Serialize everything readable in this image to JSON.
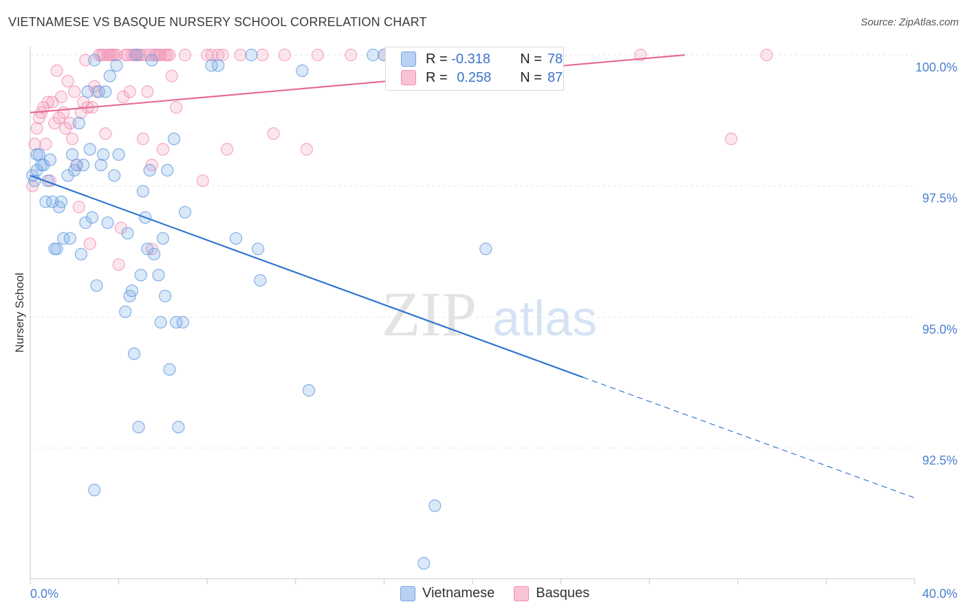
{
  "header": {
    "title": "VIETNAMESE VS BASQUE NURSERY SCHOOL CORRELATION CHART",
    "source": "Source: ZipAtlas.com"
  },
  "watermark": {
    "zip": "ZIP",
    "atlas": "atlas"
  },
  "legend": {
    "rows": [
      {
        "r_label": "R =",
        "r_value": "-0.318",
        "n_label": "N =",
        "n_value": "78"
      },
      {
        "r_label": "R =",
        "r_value": "0.258",
        "n_label": "N =",
        "n_value": "87"
      }
    ]
  },
  "bottom_legend": {
    "series_a": "Vietnamese",
    "series_b": "Basques"
  },
  "chart_data": {
    "type": "scatter",
    "title": "VIETNAMESE VS BASQUE NURSERY SCHOOL CORRELATION CHART",
    "xlabel": "",
    "ylabel": "Nursery School",
    "xlim": [
      0,
      40
    ],
    "ylim": [
      90.0,
      100.3
    ],
    "x_tick_labels": [
      "0.0%",
      "40.0%"
    ],
    "y_ticks": [
      92.5,
      95.0,
      97.5,
      100.0
    ],
    "y_tick_labels": [
      "92.5%",
      "95.0%",
      "97.5%",
      "100.0%"
    ],
    "grid": true,
    "colors": {
      "vietnamese": "#6fa3e3",
      "basques": "#f28db1",
      "blue_line": "#2f74d0",
      "pink_line": "#e56a95"
    },
    "series": [
      {
        "name": "Vietnamese",
        "r": -0.318,
        "n": 78,
        "trend": {
          "x0": 0,
          "y0": 97.7,
          "x1": 25,
          "y1": 93.85,
          "dash_to_x": 40,
          "dash_to_y": 91.55
        },
        "points": [
          [
            0.1,
            97.7
          ],
          [
            0.2,
            97.6
          ],
          [
            0.3,
            97.8
          ],
          [
            0.4,
            98.1
          ],
          [
            0.5,
            97.9
          ],
          [
            0.6,
            97.9
          ],
          [
            0.7,
            97.2
          ],
          [
            0.8,
            97.6
          ],
          [
            0.9,
            98.0
          ],
          [
            1.0,
            97.2
          ],
          [
            1.1,
            96.3
          ],
          [
            1.3,
            97.1
          ],
          [
            1.4,
            97.2
          ],
          [
            1.5,
            96.5
          ],
          [
            1.7,
            97.7
          ],
          [
            1.8,
            96.5
          ],
          [
            1.9,
            98.1
          ],
          [
            2.0,
            97.8
          ],
          [
            2.1,
            97.9
          ],
          [
            2.2,
            98.7
          ],
          [
            2.3,
            96.2
          ],
          [
            2.4,
            97.9
          ],
          [
            2.5,
            96.8
          ],
          [
            2.6,
            99.3
          ],
          [
            2.7,
            98.2
          ],
          [
            2.8,
            96.9
          ],
          [
            2.9,
            99.9
          ],
          [
            3.0,
            95.6
          ],
          [
            3.1,
            99.3
          ],
          [
            3.2,
            97.9
          ],
          [
            3.3,
            98.1
          ],
          [
            3.4,
            99.3
          ],
          [
            3.5,
            96.8
          ],
          [
            3.6,
            99.6
          ],
          [
            3.8,
            97.7
          ],
          [
            3.9,
            99.8
          ],
          [
            4.0,
            98.1
          ],
          [
            4.3,
            95.1
          ],
          [
            4.4,
            96.6
          ],
          [
            4.5,
            95.4
          ],
          [
            4.6,
            95.5
          ],
          [
            4.7,
            94.3
          ],
          [
            4.8,
            100.0
          ],
          [
            4.9,
            92.9
          ],
          [
            5.0,
            95.8
          ],
          [
            5.1,
            97.4
          ],
          [
            5.2,
            96.9
          ],
          [
            5.3,
            96.3
          ],
          [
            5.4,
            97.8
          ],
          [
            5.5,
            99.9
          ],
          [
            5.6,
            96.2
          ],
          [
            5.8,
            95.8
          ],
          [
            5.9,
            94.9
          ],
          [
            6.0,
            96.5
          ],
          [
            6.1,
            95.4
          ],
          [
            6.2,
            97.8
          ],
          [
            6.3,
            94.0
          ],
          [
            6.5,
            98.4
          ],
          [
            6.6,
            94.9
          ],
          [
            6.7,
            92.9
          ],
          [
            6.9,
            94.9
          ],
          [
            7.0,
            97.0
          ],
          [
            8.2,
            99.8
          ],
          [
            8.5,
            99.8
          ],
          [
            9.3,
            96.5
          ],
          [
            10.0,
            100.0
          ],
          [
            10.3,
            96.3
          ],
          [
            10.4,
            95.7
          ],
          [
            12.3,
            99.7
          ],
          [
            12.6,
            93.6
          ],
          [
            15.5,
            100.0
          ],
          [
            16.0,
            100.0
          ],
          [
            18.3,
            91.4
          ],
          [
            20.6,
            96.3
          ],
          [
            2.9,
            91.7
          ],
          [
            17.8,
            90.3
          ],
          [
            0.3,
            98.1
          ],
          [
            1.2,
            96.3
          ]
        ]
      },
      {
        "name": "Basques",
        "r": 0.258,
        "n": 87,
        "trend": {
          "x0": 0,
          "y0": 98.9,
          "x1": 29.6,
          "y1": 100.0
        },
        "points": [
          [
            0.1,
            97.5
          ],
          [
            0.2,
            98.3
          ],
          [
            0.3,
            98.6
          ],
          [
            0.4,
            98.8
          ],
          [
            0.5,
            98.9
          ],
          [
            0.6,
            99.0
          ],
          [
            0.7,
            98.3
          ],
          [
            0.8,
            99.1
          ],
          [
            0.9,
            97.6
          ],
          [
            1.0,
            99.1
          ],
          [
            1.1,
            98.7
          ],
          [
            1.2,
            99.7
          ],
          [
            1.3,
            98.8
          ],
          [
            1.4,
            99.2
          ],
          [
            1.5,
            98.9
          ],
          [
            1.6,
            98.6
          ],
          [
            1.7,
            99.5
          ],
          [
            1.8,
            98.7
          ],
          [
            1.9,
            98.4
          ],
          [
            2.0,
            99.3
          ],
          [
            2.1,
            97.9
          ],
          [
            2.2,
            97.1
          ],
          [
            2.3,
            98.9
          ],
          [
            2.4,
            99.1
          ],
          [
            2.5,
            99.9
          ],
          [
            2.6,
            99.0
          ],
          [
            2.7,
            96.4
          ],
          [
            2.8,
            99.0
          ],
          [
            2.9,
            99.4
          ],
          [
            3.0,
            99.3
          ],
          [
            3.1,
            100.0
          ],
          [
            3.2,
            100.0
          ],
          [
            3.3,
            100.0
          ],
          [
            3.4,
            98.5
          ],
          [
            3.5,
            100.0
          ],
          [
            3.6,
            100.0
          ],
          [
            3.7,
            100.0
          ],
          [
            3.8,
            100.0
          ],
          [
            3.9,
            100.0
          ],
          [
            4.0,
            96.0
          ],
          [
            4.1,
            96.7
          ],
          [
            4.2,
            99.2
          ],
          [
            4.3,
            100.0
          ],
          [
            4.4,
            100.0
          ],
          [
            4.5,
            99.3
          ],
          [
            4.6,
            100.0
          ],
          [
            4.7,
            100.0
          ],
          [
            4.8,
            100.0
          ],
          [
            4.9,
            100.0
          ],
          [
            5.0,
            100.0
          ],
          [
            5.1,
            98.4
          ],
          [
            5.2,
            100.0
          ],
          [
            5.3,
            99.3
          ],
          [
            5.4,
            100.0
          ],
          [
            5.5,
            97.9
          ],
          [
            5.6,
            100.0
          ],
          [
            5.7,
            100.0
          ],
          [
            5.8,
            100.0
          ],
          [
            5.9,
            100.0
          ],
          [
            6.0,
            98.2
          ],
          [
            6.1,
            100.0
          ],
          [
            6.2,
            100.0
          ],
          [
            6.3,
            100.0
          ],
          [
            6.4,
            99.6
          ],
          [
            6.6,
            99.0
          ],
          [
            7.0,
            100.0
          ],
          [
            7.8,
            97.6
          ],
          [
            8.0,
            100.0
          ],
          [
            8.2,
            100.0
          ],
          [
            8.5,
            100.0
          ],
          [
            8.7,
            100.0
          ],
          [
            8.9,
            98.2
          ],
          [
            9.5,
            100.0
          ],
          [
            10.5,
            100.0
          ],
          [
            11.0,
            98.5
          ],
          [
            11.5,
            100.0
          ],
          [
            12.5,
            98.2
          ],
          [
            13.0,
            100.0
          ],
          [
            14.5,
            100.0
          ],
          [
            16.0,
            100.0
          ],
          [
            18.0,
            100.0
          ],
          [
            20.0,
            100.0
          ],
          [
            22.0,
            100.0
          ],
          [
            27.6,
            100.0
          ],
          [
            31.7,
            98.4
          ],
          [
            33.3,
            100.0
          ],
          [
            5.5,
            96.3
          ]
        ]
      }
    ]
  }
}
